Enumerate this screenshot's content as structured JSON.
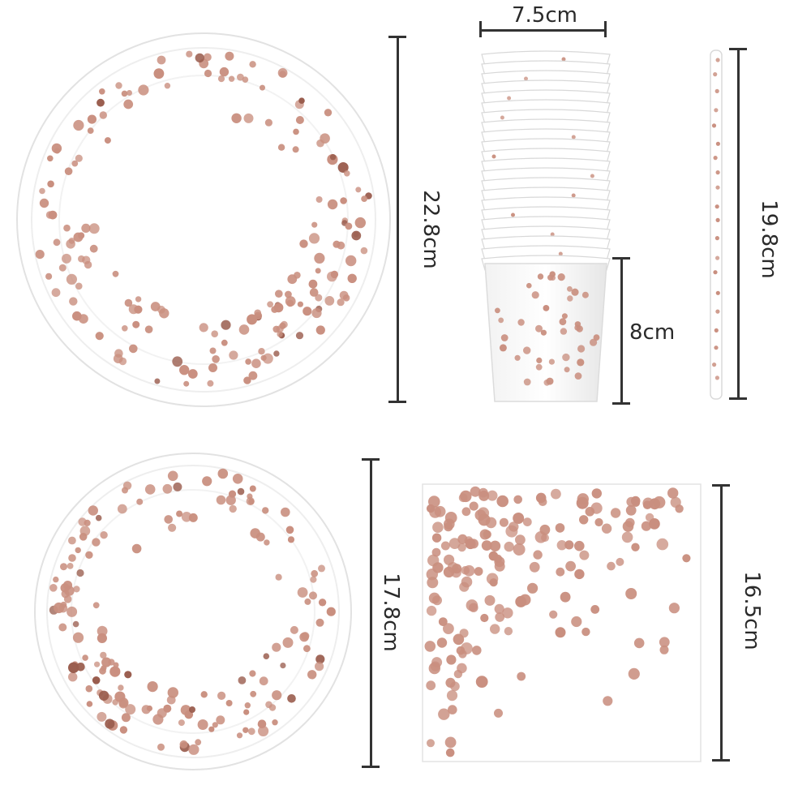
{
  "colors": {
    "dot": "#c98f7f",
    "dot_dark": "#9a5d4e",
    "paper": "#ffffff",
    "rim": "#eeeeee",
    "bar": "#333333"
  },
  "items": {
    "large_plate": {
      "dimension_label": "22.8cm"
    },
    "cup": {
      "width_label": "7.5cm",
      "height_label": "8cm"
    },
    "straw": {
      "dimension_label": "19.8cm"
    },
    "small_plate": {
      "dimension_label": "17.8cm"
    },
    "napkin": {
      "dimension_label": "16.5cm"
    }
  }
}
